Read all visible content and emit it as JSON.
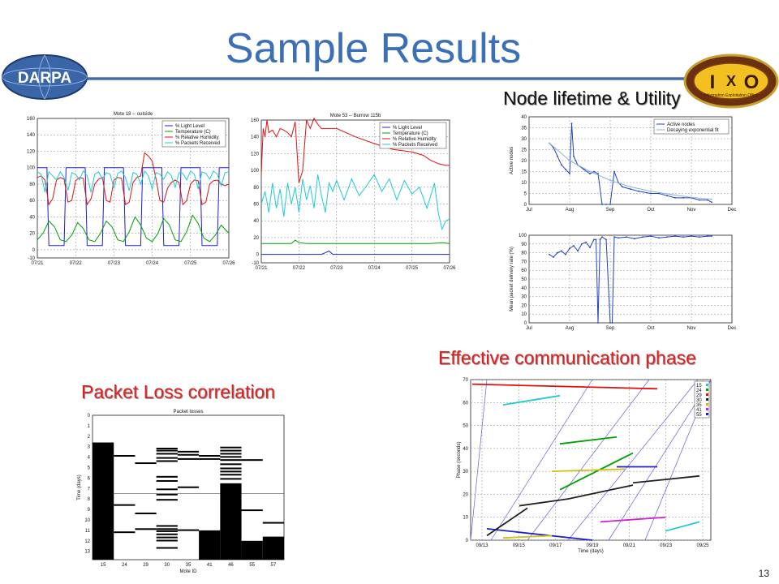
{
  "page": {
    "number": "13"
  },
  "title": "Sample Results",
  "logos": {
    "left_text": "DARPA",
    "right_text": "Information Exploitation Office",
    "right_letters": [
      "I",
      "X",
      "O"
    ]
  },
  "labels": {
    "lifetime": "Node lifetime & Utility",
    "effective": "Effective communication phase",
    "packet_loss": "Packet Loss correlation"
  },
  "colors": {
    "title": "#3b6fb6",
    "label_red": "#e02020",
    "blue": "#2020d0",
    "green": "#00a000",
    "red": "#e01010",
    "cyan": "#20c8d8"
  },
  "chart_data": [
    {
      "id": "mote18",
      "type": "line",
      "title": "Mote 18 -- outside",
      "x_ticks": [
        "07/21",
        "07/22",
        "07/23",
        "07/24",
        "07/25",
        "07/26"
      ],
      "ylim": [
        -10,
        160
      ],
      "y_ticks": [
        "-10",
        "0",
        "20",
        "40",
        "60",
        "80",
        "100",
        "120",
        "140",
        "160"
      ],
      "legend": [
        "% Light Level",
        "Temperature (C)",
        "% Relative Humidity",
        "% Packets Received"
      ],
      "legend_position": "top-right",
      "grid": true,
      "series": [
        {
          "name": "% Light Level",
          "color": "#2020d0",
          "x": [
            0,
            0.25,
            0.3,
            0.7,
            0.75,
            1.25,
            1.3,
            1.7,
            1.75,
            2.25,
            2.3,
            2.7,
            2.75,
            3.25,
            3.3,
            3.7,
            3.75,
            4.25,
            4.3,
            4.7,
            4.75,
            5
          ],
          "y": [
            100,
            100,
            5,
            5,
            100,
            100,
            5,
            5,
            100,
            100,
            5,
            5,
            100,
            100,
            5,
            5,
            100,
            100,
            5,
            5,
            100,
            100
          ]
        },
        {
          "name": "Temperature (C)",
          "color": "#00a000",
          "x": [
            0,
            0.15,
            0.3,
            0.45,
            0.6,
            0.75,
            0.9,
            1.05,
            1.2,
            1.35,
            1.5,
            1.65,
            1.8,
            1.95,
            2.1,
            2.25,
            2.4,
            2.55,
            2.7,
            2.85,
            3,
            3.15,
            3.3,
            3.45,
            3.6,
            3.75,
            3.9,
            4.05,
            4.2,
            4.35,
            4.5,
            4.65,
            4.8,
            5
          ],
          "y": [
            12,
            20,
            35,
            28,
            12,
            10,
            18,
            33,
            26,
            12,
            10,
            20,
            35,
            28,
            12,
            10,
            22,
            40,
            30,
            14,
            10,
            20,
            38,
            30,
            12,
            10,
            22,
            42,
            32,
            14,
            10,
            18,
            30,
            20
          ]
        },
        {
          "name": "% Relative Humidity",
          "color": "#e01010",
          "x": [
            0,
            0.1,
            0.2,
            0.3,
            0.4,
            0.5,
            0.6,
            0.7,
            0.8,
            0.9,
            1,
            1.1,
            1.2,
            1.3,
            1.4,
            1.5,
            1.6,
            1.7,
            1.8,
            1.9,
            2,
            2.1,
            2.2,
            2.3,
            2.4,
            2.5,
            2.6,
            2.7,
            2.8,
            2.9,
            3,
            3.1,
            3.2,
            3.3,
            3.4,
            3.5,
            3.6,
            3.7,
            3.8,
            3.9,
            4,
            4.1,
            4.2,
            4.3,
            4.4,
            4.5,
            4.6,
            4.7,
            4.8,
            4.9,
            5
          ],
          "y": [
            88,
            90,
            85,
            55,
            62,
            85,
            88,
            86,
            58,
            60,
            84,
            88,
            87,
            55,
            62,
            80,
            86,
            88,
            60,
            58,
            85,
            88,
            87,
            55,
            58,
            82,
            88,
            90,
            118,
            114,
            108,
            86,
            60,
            58,
            75,
            82,
            85,
            82,
            55,
            60,
            80,
            85,
            84,
            55,
            58,
            80,
            84,
            85,
            80,
            78,
            80
          ]
        },
        {
          "name": "% Packets Received",
          "color": "#20c8d8",
          "x": [
            0,
            0.1,
            0.2,
            0.3,
            0.4,
            0.5,
            0.6,
            0.7,
            0.8,
            0.9,
            1,
            1.1,
            1.2,
            1.3,
            1.4,
            1.5,
            1.6,
            1.7,
            1.8,
            1.9,
            2,
            2.1,
            2.2,
            2.3,
            2.4,
            2.5,
            2.6,
            2.7,
            2.8,
            2.9,
            3,
            3.1,
            3.2,
            3.3,
            3.4,
            3.5,
            3.6,
            3.7,
            3.8,
            3.9,
            4,
            4.1,
            4.2,
            4.3,
            4.4,
            4.5,
            4.6,
            4.7,
            4.8,
            4.9,
            5
          ],
          "y": [
            95,
            92,
            70,
            95,
            90,
            85,
            95,
            88,
            72,
            94,
            92,
            85,
            96,
            90,
            70,
            92,
            95,
            86,
            94,
            92,
            75,
            93,
            96,
            88,
            72,
            94,
            92,
            80,
            96,
            90,
            74,
            94,
            92,
            86,
            95,
            90,
            76,
            94,
            93,
            85,
            96,
            92,
            74,
            95,
            93,
            86,
            96,
            92,
            78,
            94,
            95
          ]
        }
      ]
    },
    {
      "id": "mote53",
      "type": "line",
      "title": "Mote 53 -- Burrow 115b",
      "x_ticks": [
        "07/21",
        "07/22",
        "07/23",
        "07/24",
        "07/25",
        "07/26"
      ],
      "ylim": [
        -10,
        160
      ],
      "y_ticks": [
        "-10",
        "0",
        "20",
        "40",
        "60",
        "80",
        "100",
        "120",
        "140",
        "160"
      ],
      "legend": [
        "% Light Level",
        "Temperature (C)",
        "% Relative Humidity",
        "% Packets Received"
      ],
      "legend_position": "top-right",
      "grid": true,
      "series": [
        {
          "name": "% Light Level",
          "color": "#2020d0",
          "x": [
            0,
            1.6,
            1.7,
            1.8,
            1.9,
            5
          ],
          "y": [
            0,
            0,
            2,
            4,
            0,
            0
          ]
        },
        {
          "name": "Temperature (C)",
          "color": "#00a000",
          "x": [
            0,
            0.8,
            0.9,
            1.0,
            1.2,
            1.6,
            2.0,
            2.5,
            3.0,
            3.5,
            4.0,
            4.5,
            4.8,
            5
          ],
          "y": [
            13,
            13,
            17,
            14,
            13,
            13,
            13,
            13,
            13,
            13,
            13,
            13,
            14,
            13
          ]
        },
        {
          "name": "% Relative Humidity",
          "color": "#e01010",
          "x": [
            0,
            0.05,
            0.1,
            0.15,
            0.2,
            0.3,
            0.4,
            0.5,
            0.6,
            0.7,
            0.8,
            0.9,
            1.0,
            1.1,
            1.2,
            1.3,
            1.4,
            1.5,
            1.6,
            2.0,
            2.5,
            3.0,
            3.5,
            4.0,
            4.3,
            4.5,
            4.7,
            4.9,
            5
          ],
          "y": [
            95,
            150,
            140,
            160,
            145,
            148,
            140,
            150,
            148,
            145,
            140,
            158,
            85,
            100,
            160,
            150,
            162,
            155,
            150,
            150,
            140,
            132,
            125,
            122,
            118,
            112,
            108,
            106,
            106
          ]
        },
        {
          "name": "% Packets Received",
          "color": "#20c8d8",
          "x": [
            0,
            0.1,
            0.2,
            0.3,
            0.4,
            0.5,
            0.6,
            0.7,
            0.8,
            0.9,
            1.0,
            1.1,
            1.2,
            1.3,
            1.4,
            1.5,
            1.6,
            1.7,
            1.8,
            1.9,
            2.0,
            2.2,
            2.4,
            2.6,
            2.8,
            3.0,
            3.2,
            3.4,
            3.6,
            3.8,
            4.0,
            4.2,
            4.4,
            4.6,
            4.7,
            4.8,
            4.9,
            5
          ],
          "y": [
            60,
            75,
            50,
            85,
            55,
            78,
            45,
            85,
            60,
            80,
            50,
            90,
            65,
            82,
            55,
            95,
            70,
            50,
            85,
            75,
            88,
            65,
            90,
            70,
            82,
            95,
            75,
            90,
            65,
            88,
            72,
            80,
            55,
            85,
            50,
            30,
            40,
            42
          ]
        }
      ]
    },
    {
      "id": "active_nodes",
      "type": "line",
      "x_ticks": [
        "Jul",
        "Aug",
        "Sep",
        "Oct",
        "Nov",
        "Dec"
      ],
      "ylim": [
        0,
        40
      ],
      "y_ticks": [
        "0",
        "5",
        "10",
        "15",
        "20",
        "25",
        "30",
        "35",
        "40"
      ],
      "ylabel": "Active nodes",
      "legend": [
        "Active nodes",
        "Decaying exponential fit"
      ],
      "legend_position": "top-right",
      "grid": true,
      "series": [
        {
          "name": "Active nodes",
          "color": "#2040c0",
          "x": [
            0.5,
            0.6,
            0.7,
            0.8,
            0.9,
            1.0,
            1.05,
            1.1,
            1.15,
            1.2,
            1.35,
            1.5,
            1.6,
            1.7,
            1.8,
            1.9,
            2.0,
            2.1,
            2.2,
            2.3,
            2.5,
            2.7,
            3.0,
            3.2,
            3.4,
            3.6,
            3.8,
            4.0,
            4.2,
            4.4,
            4.5
          ],
          "y": [
            28,
            26,
            22,
            18,
            16,
            14,
            37,
            22,
            20,
            18,
            16,
            14,
            15,
            14,
            0,
            0,
            0,
            15,
            10,
            8,
            7,
            6,
            5,
            5,
            4,
            3,
            3,
            3,
            2,
            2,
            1
          ]
        },
        {
          "name": "Decaying exponential fit",
          "color": "#8ab0e0",
          "x": [
            0.5,
            1.0,
            1.5,
            2.0,
            2.5,
            3.0,
            3.5,
            4.0,
            4.5
          ],
          "y": [
            28,
            20,
            15,
            11,
            8,
            6,
            4.5,
            3.2,
            2.4
          ]
        }
      ]
    },
    {
      "id": "delivery_rate",
      "type": "line",
      "x_ticks": [
        "Jul",
        "Aug",
        "Sep",
        "Oct",
        "Nov",
        "Dec"
      ],
      "ylim": [
        0,
        100
      ],
      "y_ticks": [
        "0",
        "10",
        "20",
        "30",
        "40",
        "50",
        "60",
        "70",
        "80",
        "90",
        "100"
      ],
      "ylabel": "Mean packet delivery rate (%)",
      "grid": true,
      "series": [
        {
          "name": "delivery",
          "color": "#2040c0",
          "x": [
            0.5,
            0.6,
            0.7,
            0.8,
            0.9,
            1.0,
            1.1,
            1.2,
            1.3,
            1.4,
            1.5,
            1.6,
            1.65,
            1.7,
            1.75,
            1.8,
            1.9,
            2.0,
            2.05,
            2.1,
            2.2,
            2.4,
            2.6,
            2.8,
            3.0,
            3.2,
            3.4,
            3.6,
            3.8,
            4.0,
            4.2,
            4.4,
            4.5
          ],
          "y": [
            78,
            75,
            80,
            82,
            78,
            85,
            88,
            82,
            90,
            92,
            86,
            95,
            95,
            0,
            95,
            98,
            95,
            0,
            0,
            98,
            97,
            98,
            96,
            98,
            99,
            97,
            98,
            99,
            98,
            99,
            98,
            99,
            99
          ]
        }
      ]
    },
    {
      "id": "phase",
      "type": "scatter",
      "ylabel": "Phase (seconds)",
      "xlabel": "Time (days)",
      "x_ticks": [
        "09/13",
        "09/15",
        "09/17",
        "09/19",
        "09/21",
        "09/23",
        "09/25"
      ],
      "ylim": [
        0,
        70
      ],
      "y_ticks": [
        "0",
        "10",
        "20",
        "30",
        "40",
        "50",
        "60",
        "70"
      ],
      "legend": [
        "15",
        "24",
        "29",
        "30",
        "35",
        "41",
        "55"
      ],
      "legend_position": "top-right",
      "grid": true
    },
    {
      "id": "packet_losses",
      "type": "heatmap",
      "title": "Packet losses",
      "xlabel": "Mote ID",
      "ylabel": "Time (days)",
      "x_ticks": [
        "15",
        "24",
        "29",
        "30",
        "35",
        "41",
        "46",
        "55",
        "57"
      ],
      "y_ticks": [
        "0",
        "1",
        "2",
        "3",
        "4",
        "5",
        "6",
        "7",
        "8",
        "9",
        "10",
        "11",
        "12",
        "13"
      ]
    }
  ]
}
